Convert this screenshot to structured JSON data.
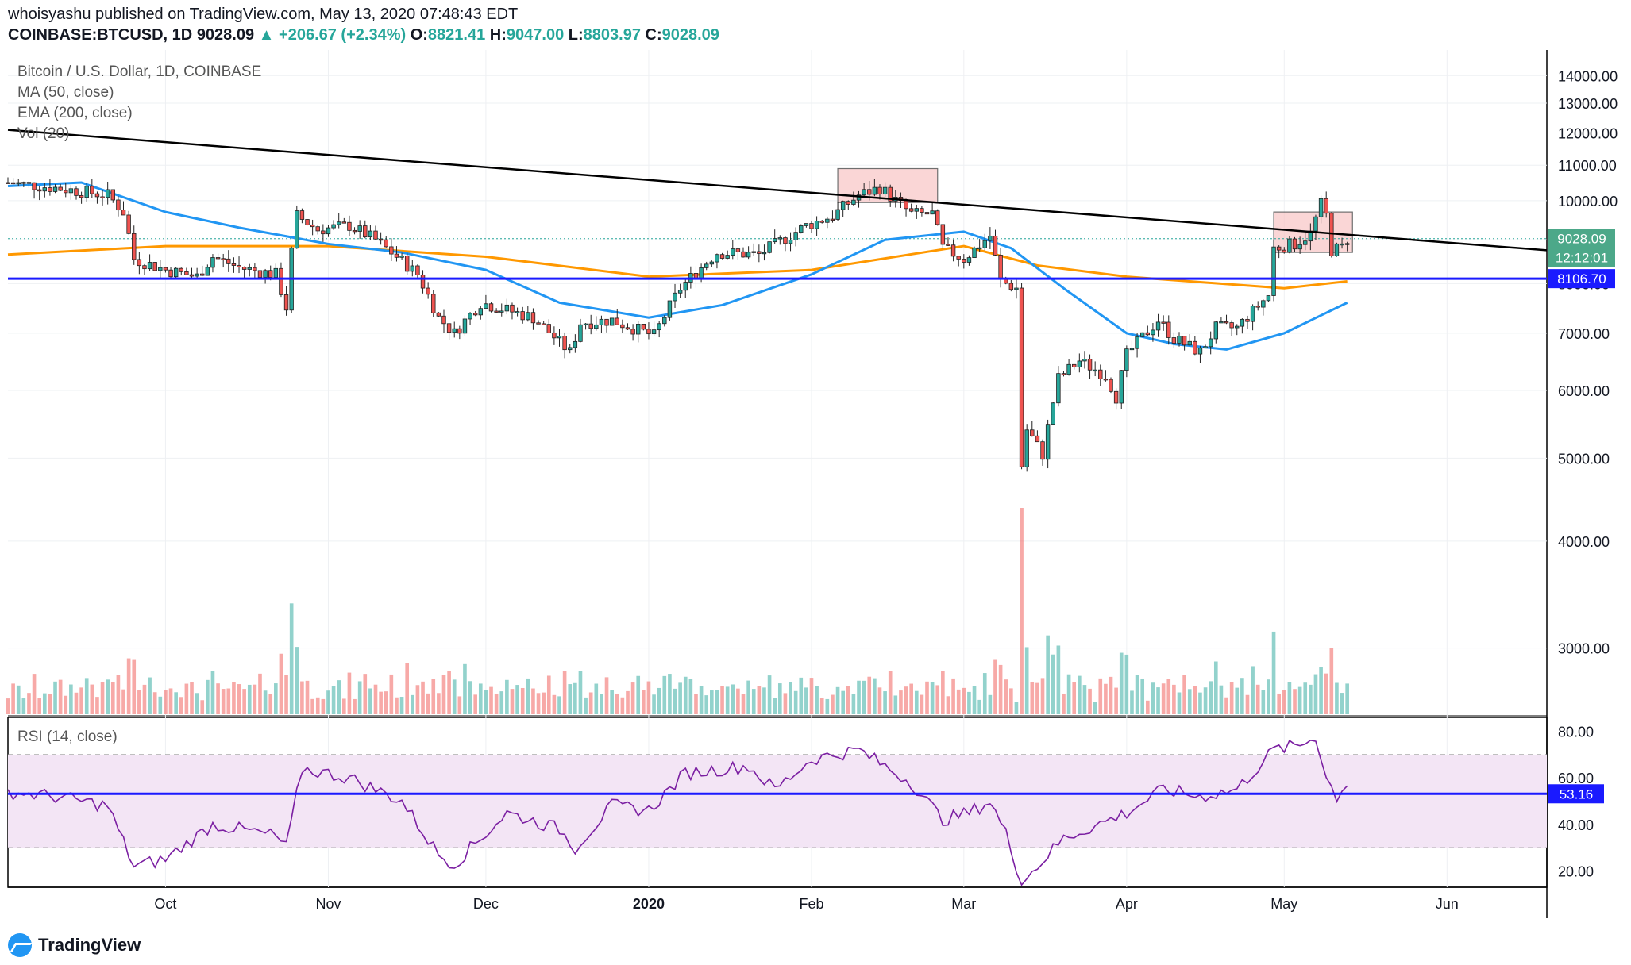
{
  "header": {
    "published": "whoisyashu published on TradingView.com, May 13, 2020 07:48:43 EDT",
    "symbol": "COINBASE:BTCUSD, 1D",
    "last": "9028.09",
    "change": "▲ +206.67 (+2.34%)",
    "open_label": "O:",
    "open": "8821.41",
    "high_label": "H:",
    "high": "9047.00",
    "low_label": "L:",
    "low": "8803.97",
    "close_label": "C:",
    "close": "9028.09"
  },
  "legend": {
    "title": "Bitcoin / U.S. Dollar, 1D, COINBASE",
    "ma": "MA (50, close)",
    "ema": "EMA (200, close)",
    "vol": "Vol (20)",
    "rsi": "RSI (14, close)"
  },
  "brand": "TradingView",
  "colors": {
    "up": "#26a69a",
    "down": "#ef5350",
    "ma": "#2196f3",
    "ema": "#ff9800",
    "hline": "#1a1aff",
    "rsi": "#7b1fa2",
    "rsi_band": "#f3e5f5",
    "zone": "#f8c5c5"
  },
  "chart_data": [
    {
      "type": "candlestick",
      "title": "Bitcoin / U.S. Dollar, 1D, COINBASE",
      "x_range": [
        "2019-09-01",
        "2020-06-20"
      ],
      "ylim": [
        2500,
        15000
      ],
      "yscale": "log",
      "y_ticks": [
        "14000.00",
        "13000.00",
        "12000.00",
        "11000.00",
        "10000.00",
        "9000.00",
        "8000.00",
        "7000.00",
        "6000.00",
        "5000.00",
        "4000.00",
        "3000.00"
      ],
      "x_ticks": [
        "Oct",
        "Nov",
        "Dec",
        "2020",
        "Feb",
        "Mar",
        "Apr",
        "May",
        "Jun"
      ],
      "x_tick_dates": [
        "2019-10-01",
        "2019-11-01",
        "2019-12-01",
        "2020-01-01",
        "2020-02-01",
        "2020-03-01",
        "2020-04-01",
        "2020-05-01",
        "2020-06-01"
      ],
      "price_labels": {
        "last": "9028.09",
        "countdown": "12:12:01",
        "support": "8106.70"
      },
      "support_level": 8106.7,
      "last_price": 9028.09,
      "trendline": {
        "start": [
          "2019-09-01",
          12100
        ],
        "end": [
          "2020-06-20",
          8750
        ]
      },
      "resistance_zones": [
        {
          "x0": "2020-02-06",
          "x1": "2020-02-25",
          "y0": 9950,
          "y1": 10900
        },
        {
          "x0": "2020-04-29",
          "x1": "2020-05-14",
          "y0": 8700,
          "y1": 9700
        }
      ],
      "close_anchors": [
        [
          "2019-09-01",
          10500
        ],
        [
          "2019-09-10",
          10350
        ],
        [
          "2019-09-20",
          10150
        ],
        [
          "2019-09-23",
          9700
        ],
        [
          "2019-09-25",
          8550
        ],
        [
          "2019-10-01",
          8300
        ],
        [
          "2019-10-07",
          8150
        ],
        [
          "2019-10-10",
          8600
        ],
        [
          "2019-10-15",
          8350
        ],
        [
          "2019-10-22",
          8200
        ],
        [
          "2019-10-24",
          7500
        ],
        [
          "2019-10-25",
          8700
        ],
        [
          "2019-10-26",
          9600
        ],
        [
          "2019-10-30",
          9250
        ],
        [
          "2019-11-05",
          9350
        ],
        [
          "2019-11-10",
          9000
        ],
        [
          "2019-11-18",
          8200
        ],
        [
          "2019-11-22",
          7300
        ],
        [
          "2019-11-25",
          7000
        ],
        [
          "2019-11-30",
          7600
        ],
        [
          "2019-12-10",
          7300
        ],
        [
          "2019-12-17",
          6650
        ],
        [
          "2019-12-19",
          7200
        ],
        [
          "2019-12-25",
          7250
        ],
        [
          "2020-01-02",
          6950
        ],
        [
          "2020-01-07",
          7900
        ],
        [
          "2020-01-14",
          8700
        ],
        [
          "2020-01-22",
          8650
        ],
        [
          "2020-01-31",
          9350
        ],
        [
          "2020-02-05",
          9600
        ],
        [
          "2020-02-10",
          10150
        ],
        [
          "2020-02-14",
          10350
        ],
        [
          "2020-02-20",
          9650
        ],
        [
          "2020-02-24",
          9650
        ],
        [
          "2020-02-26",
          8800
        ],
        [
          "2020-03-01",
          8550
        ],
        [
          "2020-03-06",
          9100
        ],
        [
          "2020-03-08",
          8050
        ],
        [
          "2020-03-11",
          7900
        ],
        [
          "2020-03-12",
          4900
        ],
        [
          "2020-03-13",
          5400
        ],
        [
          "2020-03-16",
          5050
        ],
        [
          "2020-03-19",
          6200
        ],
        [
          "2020-03-23",
          6500
        ],
        [
          "2020-03-28",
          6250
        ],
        [
          "2020-03-30",
          5900
        ],
        [
          "2020-04-01",
          6600
        ],
        [
          "2020-04-07",
          7250
        ],
        [
          "2020-04-10",
          6900
        ],
        [
          "2020-04-15",
          6650
        ],
        [
          "2020-04-18",
          7100
        ],
        [
          "2020-04-22",
          7100
        ],
        [
          "2020-04-28",
          7750
        ],
        [
          "2020-04-29",
          8800
        ],
        [
          "2020-05-03",
          8900
        ],
        [
          "2020-05-06",
          9150
        ],
        [
          "2020-05-08",
          9900
        ],
        [
          "2020-05-09",
          9600
        ],
        [
          "2020-05-10",
          8750
        ],
        [
          "2020-05-12",
          8820
        ],
        [
          "2020-05-13",
          9028
        ]
      ],
      "series": [
        {
          "name": "MA (50, close)",
          "points": [
            [
              "2019-09-01",
              10400
            ],
            [
              "2019-09-15",
              10500
            ],
            [
              "2019-10-01",
              9700
            ],
            [
              "2019-10-15",
              9300
            ],
            [
              "2019-11-01",
              8900
            ],
            [
              "2019-11-15",
              8700
            ],
            [
              "2019-12-01",
              8300
            ],
            [
              "2019-12-15",
              7600
            ],
            [
              "2020-01-01",
              7300
            ],
            [
              "2020-01-15",
              7550
            ],
            [
              "2020-02-01",
              8200
            ],
            [
              "2020-02-15",
              9000
            ],
            [
              "2020-03-01",
              9200
            ],
            [
              "2020-03-10",
              8800
            ],
            [
              "2020-03-20",
              7900
            ],
            [
              "2020-04-01",
              7000
            ],
            [
              "2020-04-10",
              6800
            ],
            [
              "2020-04-20",
              6700
            ],
            [
              "2020-05-01",
              7000
            ],
            [
              "2020-05-13",
              7600
            ]
          ]
        },
        {
          "name": "EMA (200, close)",
          "points": [
            [
              "2019-09-01",
              8650
            ],
            [
              "2019-10-01",
              8850
            ],
            [
              "2019-11-01",
              8850
            ],
            [
              "2019-12-01",
              8600
            ],
            [
              "2020-01-01",
              8150
            ],
            [
              "2020-02-01",
              8300
            ],
            [
              "2020-03-01",
              8850
            ],
            [
              "2020-03-15",
              8400
            ],
            [
              "2020-04-01",
              8150
            ],
            [
              "2020-05-01",
              7900
            ],
            [
              "2020-05-13",
              8050
            ]
          ]
        }
      ],
      "volume_ylim": [
        0,
        5000000
      ]
    },
    {
      "type": "line",
      "title": "RSI (14, close)",
      "ylim": [
        13,
        86
      ],
      "y_ticks": [
        "80.00",
        "60.00",
        "40.00",
        "20.00"
      ],
      "bands": [
        30,
        70
      ],
      "hline": 53.16,
      "hline_label": "53.16",
      "points": [
        [
          "2019-09-01",
          54
        ],
        [
          "2019-09-10",
          52
        ],
        [
          "2019-09-20",
          48
        ],
        [
          "2019-09-25",
          22
        ],
        [
          "2019-10-01",
          25
        ],
        [
          "2019-10-10",
          40
        ],
        [
          "2019-10-15",
          38
        ],
        [
          "2019-10-22",
          35
        ],
        [
          "2019-10-24",
          30
        ],
        [
          "2019-10-27",
          64
        ],
        [
          "2019-11-05",
          60
        ],
        [
          "2019-11-15",
          50
        ],
        [
          "2019-11-22",
          27
        ],
        [
          "2019-11-25",
          23
        ],
        [
          "2019-12-05",
          45
        ],
        [
          "2019-12-15",
          38
        ],
        [
          "2019-12-18",
          30
        ],
        [
          "2019-12-25",
          48
        ],
        [
          "2020-01-01",
          46
        ],
        [
          "2020-01-08",
          62
        ],
        [
          "2020-01-20",
          65
        ],
        [
          "2020-01-25",
          55
        ],
        [
          "2020-02-01",
          68
        ],
        [
          "2020-02-10",
          72
        ],
        [
          "2020-02-20",
          58
        ],
        [
          "2020-02-26",
          42
        ],
        [
          "2020-03-02",
          45
        ],
        [
          "2020-03-06",
          50
        ],
        [
          "2020-03-09",
          36
        ],
        [
          "2020-03-12",
          15
        ],
        [
          "2020-03-20",
          34
        ],
        [
          "2020-04-01",
          45
        ],
        [
          "2020-04-08",
          55
        ],
        [
          "2020-04-15",
          52
        ],
        [
          "2020-04-22",
          55
        ],
        [
          "2020-04-29",
          72
        ],
        [
          "2020-05-04",
          74
        ],
        [
          "2020-05-07",
          78
        ],
        [
          "2020-05-09",
          60
        ],
        [
          "2020-05-11",
          52
        ],
        [
          "2020-05-13",
          58
        ]
      ]
    }
  ]
}
